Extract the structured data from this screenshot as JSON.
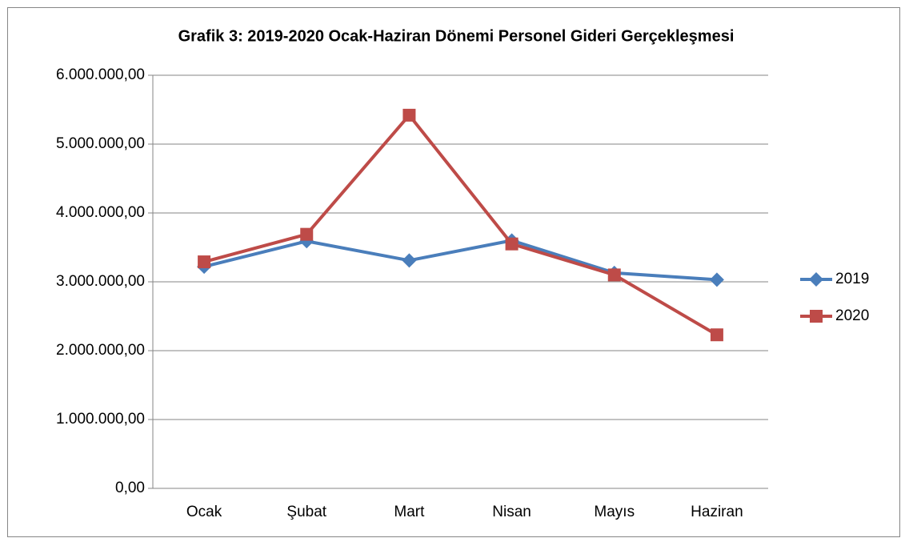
{
  "chart_data": {
    "type": "line",
    "title": "Grafik 3: 2019-2020 Ocak-Haziran Dönemi Personel Gideri Gerçekleşmesi",
    "categories": [
      "Ocak",
      "Şubat",
      "Mart",
      "Nisan",
      "Mayıs",
      "Haziran"
    ],
    "series": [
      {
        "name": "2019",
        "color": "#4a7ebb",
        "marker": "diamond",
        "values": [
          3220000,
          3590000,
          3310000,
          3600000,
          3130000,
          3030000
        ]
      },
      {
        "name": "2020",
        "color": "#be4b48",
        "marker": "square",
        "values": [
          3290000,
          3690000,
          5420000,
          3550000,
          3100000,
          2230000
        ]
      }
    ],
    "ylim": [
      0,
      6000000
    ],
    "yticks": [
      {
        "value": 0,
        "label": "0,00"
      },
      {
        "value": 1000000,
        "label": "1.000.000,00"
      },
      {
        "value": 2000000,
        "label": "2.000.000,00"
      },
      {
        "value": 3000000,
        "label": "3.000.000,00"
      },
      {
        "value": 4000000,
        "label": "4.000.000,00"
      },
      {
        "value": 5000000,
        "label": "5.000.000,00"
      },
      {
        "value": 6000000,
        "label": "6.000.000,00"
      }
    ],
    "grid": true,
    "legend": "right"
  }
}
